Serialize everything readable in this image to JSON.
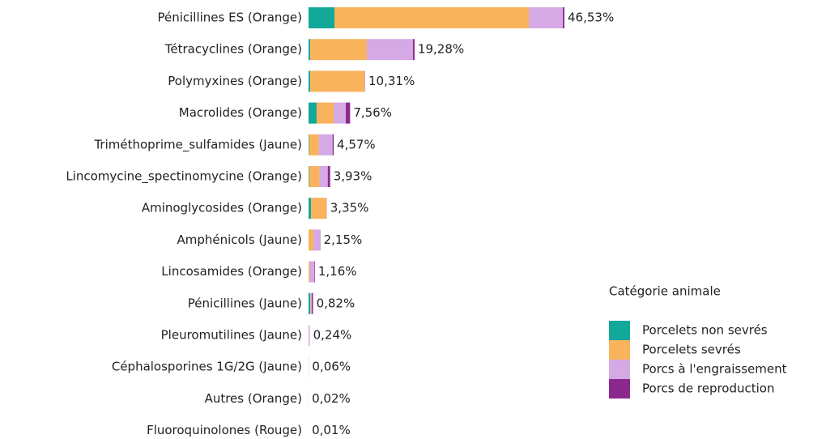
{
  "chart_data": {
    "type": "stacked-bar",
    "orientation": "horizontal",
    "categories": [
      "Pénicillines ES (Orange)",
      "Tétracyclines (Orange)",
      "Polymyxines (Orange)",
      "Macrolides (Orange)",
      "Triméthoprime_sulfamides (Jaune)",
      "Lincomycine_spectinomycine (Orange)",
      "Aminoglycosides (Orange)",
      "Amphénicols (Jaune)",
      "Lincosamides (Orange)",
      "Pénicillines (Jaune)",
      "Pleuromutilines (Jaune)",
      "Céphalosporines 1G/2G (Jaune)",
      "Autres (Orange)",
      "Fluoroquinolones (Rouge)"
    ],
    "series": [
      {
        "name": "Porcelets non sevrés",
        "color": "#13a99a",
        "values": [
          4.71,
          0.3,
          0.3,
          1.47,
          0.1,
          0.1,
          0.45,
          0,
          0,
          0.3,
          0,
          0,
          0,
          0
        ]
      },
      {
        "name": "Porcelets sevrés",
        "color": "#f9b35c",
        "values": [
          35.35,
          10.3,
          9.86,
          3.09,
          1.77,
          1.9,
          2.8,
          0.9,
          0.2,
          0.1,
          0.04,
          0.03,
          0.01,
          0.005
        ]
      },
      {
        "name": "Porcs à l'engraissement",
        "color": "#d4a9e4",
        "values": [
          6.19,
          8.39,
          0.15,
          2.21,
          2.5,
          1.5,
          0.1,
          1.2,
          0.86,
          0.2,
          0.2,
          0.03,
          0.01,
          0.005
        ]
      },
      {
        "name": "Porcs de reproduction",
        "color": "#8b2a8c",
        "values": [
          0.28,
          0.29,
          0,
          0.79,
          0.2,
          0.43,
          0,
          0.05,
          0.1,
          0.22,
          0,
          0,
          0,
          0
        ]
      }
    ],
    "totals": [
      46.53,
      19.28,
      10.31,
      7.56,
      4.57,
      3.93,
      3.35,
      2.15,
      1.16,
      0.82,
      0.24,
      0.06,
      0.02,
      0.01
    ],
    "total_labels": [
      "46,53%",
      "19,28%",
      "10,31%",
      "7,56%",
      "4,57%",
      "3,93%",
      "3,35%",
      "2,15%",
      "1,16%",
      "0,82%",
      "0,24%",
      "0,06%",
      "0,02%",
      "0,01%"
    ],
    "legend_title": "Catégorie animale",
    "legend": "right"
  }
}
